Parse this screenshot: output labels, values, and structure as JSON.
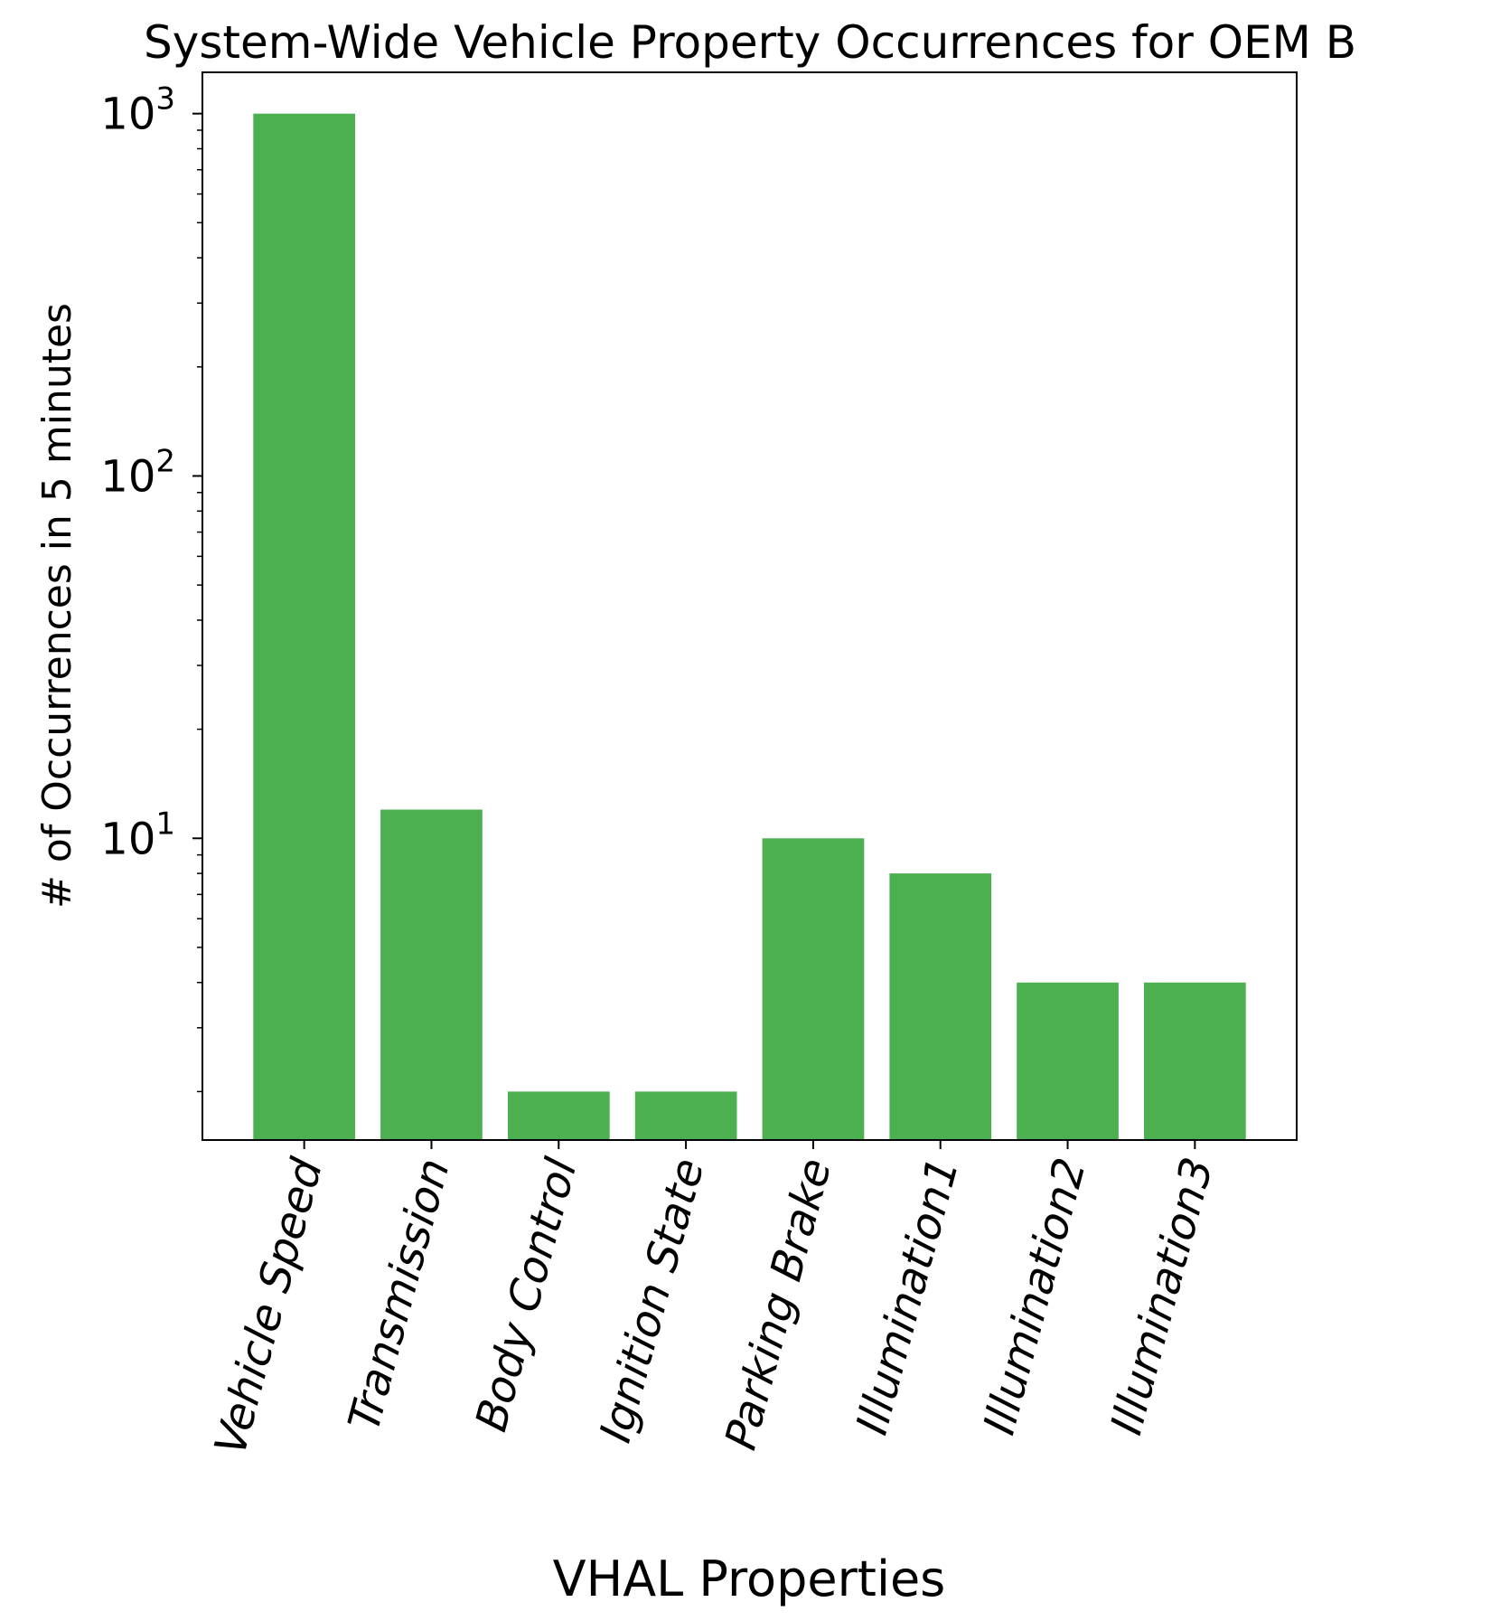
{
  "chart_data": {
    "type": "bar",
    "title": "System-Wide Vehicle Property Occurrences for OEM B",
    "xlabel": "VHAL Properties",
    "ylabel": "# of Occurrences in 5 minutes",
    "categories": [
      "Vehicle Speed",
      "Transmission",
      "Body Control",
      "Ignition State",
      "Parking Brake",
      "Illumination1",
      "Illumination2",
      "Illumination3"
    ],
    "values": [
      1000,
      12,
      2,
      2,
      10,
      8,
      4,
      4
    ],
    "yscale": "log",
    "ylim": [
      1.47,
      1300
    ],
    "yticks": [
      {
        "value": 10,
        "base": "10",
        "exp": "1"
      },
      {
        "value": 100,
        "base": "10",
        "exp": "2"
      },
      {
        "value": 1000,
        "base": "10",
        "exp": "3"
      }
    ],
    "bar_color": "#4caf50",
    "grid": false,
    "legend": "none"
  }
}
